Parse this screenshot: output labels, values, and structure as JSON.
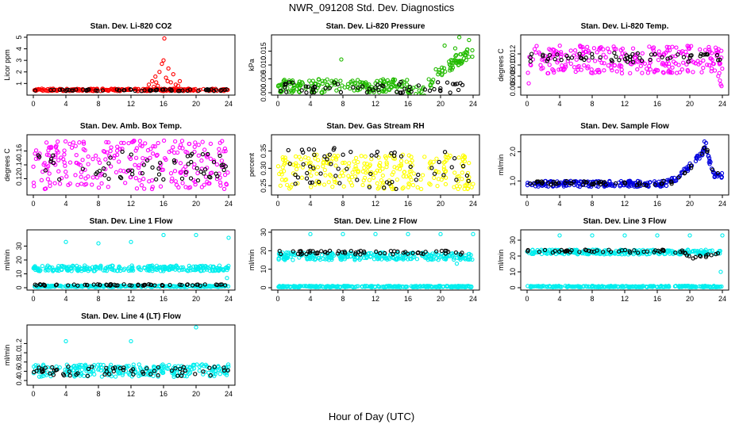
{
  "figure": {
    "title": "NWR_091208  Std. Dev. Diagnostics",
    "xlabel": "Hour of Day (UTC)"
  },
  "chart_data": [
    {
      "type": "scatter",
      "title": "Stan. Dev. Li-820 CO2",
      "ylabel": "Licor ppm",
      "xlim": [
        0,
        24
      ],
      "ylim": [
        0.2,
        5.0
      ],
      "x_ticks": [
        "0",
        "4",
        "8",
        "12",
        "16",
        "20",
        "24"
      ],
      "y_ticks": [
        "1",
        "2",
        "3",
        "4",
        "5"
      ],
      "series": [
        {
          "color": "#ff0000",
          "band": [
            0.35,
            0.55
          ],
          "points": [
            [
              14.2,
              0.9
            ],
            [
              14.6,
              1.2
            ],
            [
              15.0,
              1.6
            ],
            [
              15.3,
              0.8
            ],
            [
              15.5,
              2.0
            ],
            [
              15.8,
              2.7
            ],
            [
              16.0,
              3.0
            ],
            [
              16.1,
              4.9
            ],
            [
              16.3,
              1.5
            ],
            [
              16.6,
              2.3
            ],
            [
              16.9,
              1.1
            ],
            [
              17.2,
              1.8
            ],
            [
              17.5,
              0.9
            ],
            [
              18.0,
              1.2
            ],
            [
              15.1,
              1.1
            ],
            [
              14.8,
              0.7
            ],
            [
              16.5,
              1.2
            ],
            [
              17.8,
              0.8
            ]
          ]
        },
        {
          "color": "#000000",
          "band": [
            0.35,
            0.5
          ],
          "points": []
        }
      ]
    },
    {
      "type": "scatter",
      "title": "Stan. Dev. Li-820 Pressure",
      "ylabel": "kPa",
      "xlim": [
        0,
        24
      ],
      "ylim": [
        0.0,
        0.02
      ],
      "x_ticks": [
        "0",
        "4",
        "8",
        "12",
        "16",
        "20",
        "24"
      ],
      "y_ticks": [
        "0.000",
        "0.005",
        "0.010",
        "0.015"
      ],
      "series": [
        {
          "color": "#22bb00",
          "band": [
            0.0,
            0.005
          ],
          "trend": [
            [
              18,
              0.0
            ],
            [
              19.5,
              0.007
            ],
            [
              21,
              0.01
            ],
            [
              22,
              0.012
            ],
            [
              24,
              0.014
            ]
          ],
          "points": [
            [
              7.8,
              0.012
            ],
            [
              20.5,
              0.017
            ],
            [
              22.3,
              0.02
            ],
            [
              23.5,
              0.019
            ],
            [
              21.8,
              0.016
            ],
            [
              23.9,
              0.013
            ]
          ]
        },
        {
          "color": "#000000",
          "band": [
            0.0,
            0.004
          ],
          "points": []
        }
      ]
    },
    {
      "type": "scatter",
      "title": "Stan. Dev. Li-820 Temp.",
      "ylabel": "degrees C",
      "xlim": [
        0,
        24
      ],
      "ylim": [
        0.005,
        0.015
      ],
      "x_ticks": [
        "0",
        "4",
        "8",
        "12",
        "16",
        "20",
        "24"
      ],
      "y_ticks": [
        "0.006",
        "0.008",
        "0.010",
        "0.012"
      ],
      "series": [
        {
          "color": "#ff00ff",
          "band": [
            0.0085,
            0.0135
          ],
          "points": [
            [
              23.5,
              0.008
            ],
            [
              23.7,
              0.0072
            ],
            [
              23.9,
              0.0062
            ],
            [
              23.8,
              0.0065
            ],
            [
              0.2,
              0.0067
            ]
          ]
        },
        {
          "color": "#000000",
          "band": [
            0.0105,
            0.0122
          ],
          "points": []
        }
      ]
    },
    {
      "type": "scatter",
      "title": "Stan. Dev. Amb. Box Temp.",
      "ylabel": "degrees C",
      "xlim": [
        0,
        24
      ],
      "ylim": [
        0.1,
        0.18
      ],
      "x_ticks": [
        "0",
        "4",
        "8",
        "12",
        "16",
        "20",
        "24"
      ],
      "y_ticks": [
        "0.12",
        "0.14",
        "0.16"
      ],
      "series": [
        {
          "color": "#ff00ff",
          "band": [
            0.105,
            0.175
          ],
          "points": []
        },
        {
          "color": "#000000",
          "band": [
            0.115,
            0.16
          ],
          "points": []
        }
      ]
    },
    {
      "type": "scatter",
      "title": "Stan. Dev. Gas Stream RH",
      "ylabel": "percent",
      "xlim": [
        0,
        24
      ],
      "ylim": [
        0.23,
        0.39
      ],
      "x_ticks": [
        "0",
        "4",
        "8",
        "12",
        "16",
        "20",
        "24"
      ],
      "y_ticks": [
        "0.25",
        "0.30",
        "0.35"
      ],
      "series": [
        {
          "color": "#ffff00",
          "band": [
            0.24,
            0.34
          ],
          "points": []
        },
        {
          "color": "#000000",
          "band": [
            0.24,
            0.36
          ],
          "points": []
        }
      ]
    },
    {
      "type": "scatter",
      "title": "Stan. Dev. Sample Flow",
      "ylabel": "ml/min",
      "xlim": [
        0,
        24
      ],
      "ylim": [
        0.6,
        2.5
      ],
      "x_ticks": [
        "0",
        "4",
        "8",
        "12",
        "16",
        "20",
        "24"
      ],
      "y_ticks": [
        "1.0",
        "2.0"
      ],
      "series": [
        {
          "color": "#0000dd",
          "band": [
            0.8,
            1.0
          ],
          "trend": [
            [
              0,
              0.9
            ],
            [
              17,
              0.9
            ],
            [
              18.5,
              1.1
            ],
            [
              20,
              1.5
            ],
            [
              21,
              1.8
            ],
            [
              22,
              2.1
            ],
            [
              22.5,
              1.6
            ],
            [
              23,
              1.2
            ],
            [
              24,
              1.2
            ]
          ],
          "points": [
            [
              21.8,
              2.35
            ],
            [
              22.0,
              2.3
            ]
          ]
        },
        {
          "color": "#000000",
          "band": [
            0.85,
            1.0
          ],
          "trend": [
            [
              0,
              0.9
            ],
            [
              18,
              0.95
            ],
            [
              20,
              1.4
            ],
            [
              21.5,
              2.0
            ],
            [
              22,
              2.2
            ],
            [
              23,
              1.2
            ],
            [
              24,
              1.2
            ]
          ],
          "points": []
        }
      ]
    },
    {
      "type": "scatter",
      "title": "Stan. Dev. Line 1 Flow",
      "ylabel": "ml/min",
      "xlim": [
        0,
        24
      ],
      "ylim": [
        0,
        40
      ],
      "x_ticks": [
        "0",
        "4",
        "8",
        "12",
        "16",
        "20",
        "24"
      ],
      "y_ticks": [
        "0",
        "10",
        "20",
        "30"
      ],
      "series": [
        {
          "color": "#00eeee",
          "band": [
            12,
            16
          ],
          "points": [
            [
              4,
              33
            ],
            [
              8,
              32
            ],
            [
              12,
              33
            ],
            [
              16,
              38
            ],
            [
              20,
              38
            ],
            [
              24,
              36
            ],
            [
              23.8,
              7
            ]
          ]
        },
        {
          "color": "#00eeee",
          "band": [
            0.5,
            1.5
          ],
          "points": []
        },
        {
          "color": "#000000",
          "band": [
            1.5,
            2.5
          ],
          "points": []
        }
      ]
    },
    {
      "type": "scatter",
      "title": "Stan. Dev. Line 2 Flow",
      "ylabel": "ml/min",
      "xlim": [
        0,
        24
      ],
      "ylim": [
        0,
        30
      ],
      "x_ticks": [
        "0",
        "4",
        "8",
        "12",
        "16",
        "20",
        "24"
      ],
      "y_ticks": [
        "0",
        "10",
        "20",
        "30"
      ],
      "series": [
        {
          "color": "#00eeee",
          "band": [
            15,
            19
          ],
          "points": [
            [
              4,
              29
            ],
            [
              8,
              29
            ],
            [
              12,
              29
            ],
            [
              16,
              29
            ],
            [
              20,
              29
            ],
            [
              24,
              29
            ],
            [
              22,
              13
            ]
          ]
        },
        {
          "color": "#00eeee",
          "band": [
            0.2,
            1.0
          ],
          "points": []
        },
        {
          "color": "#000000",
          "band": [
            18,
            20
          ],
          "points": []
        }
      ]
    },
    {
      "type": "scatter",
      "title": "Stan. Dev. Line 3 Flow",
      "ylabel": "ml/min",
      "xlim": [
        0,
        24
      ],
      "ylim": [
        0,
        35
      ],
      "x_ticks": [
        "0",
        "4",
        "8",
        "12",
        "16",
        "20",
        "24"
      ],
      "y_ticks": [
        "0",
        "10",
        "20",
        "30"
      ],
      "series": [
        {
          "color": "#00eeee",
          "band": [
            21,
            24
          ],
          "points": [
            [
              4,
              33
            ],
            [
              8,
              33
            ],
            [
              12,
              33
            ],
            [
              16,
              33
            ],
            [
              20,
              33
            ],
            [
              24,
              33
            ],
            [
              23.8,
              10
            ]
          ]
        },
        {
          "color": "#00eeee",
          "band": [
            0.3,
            1.2
          ],
          "points": []
        },
        {
          "color": "#000000",
          "band": [
            22,
            24
          ],
          "trend": [
            [
              0,
              23
            ],
            [
              19,
              23
            ],
            [
              20.5,
              19
            ],
            [
              22,
              20
            ],
            [
              24,
              23
            ]
          ],
          "points": []
        }
      ]
    },
    {
      "type": "scatter",
      "title": "Stan. Dev. Line 4 (LT) Flow",
      "ylabel": "ml/min",
      "xlim": [
        0,
        24
      ],
      "ylim": [
        0.35,
        1.55
      ],
      "x_ticks": [
        "0",
        "4",
        "8",
        "12",
        "16",
        "20",
        "24"
      ],
      "y_ticks": [
        "0.4",
        "0.6",
        "0.8",
        "1.0",
        "1.2"
      ],
      "series": [
        {
          "color": "#00eeee",
          "band": [
            0.48,
            0.75
          ],
          "points": [
            [
              4,
              1.25
            ],
            [
              12,
              1.25
            ],
            [
              20,
              1.55
            ]
          ]
        },
        {
          "color": "#000000",
          "band": [
            0.5,
            0.7
          ],
          "points": []
        }
      ]
    }
  ]
}
